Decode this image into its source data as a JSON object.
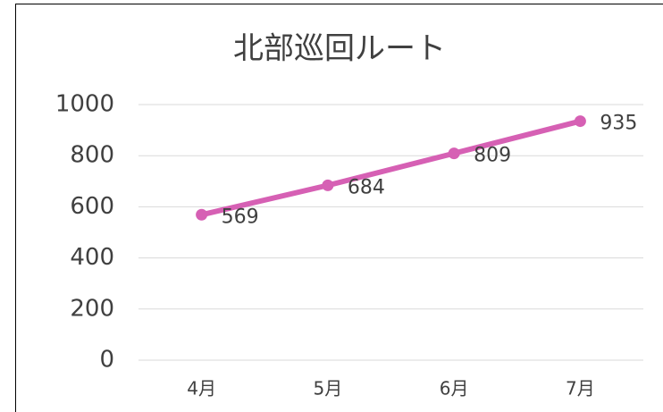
{
  "chart_data": {
    "type": "line",
    "title": "北部巡回ルート",
    "categories": [
      "4月",
      "5月",
      "6月",
      "7月"
    ],
    "series": [
      {
        "name": "北部巡回ルート",
        "color": "#d660b4",
        "values": [
          569,
          684,
          809,
          935
        ]
      }
    ],
    "ylim": [
      0,
      1000
    ],
    "yticks": [
      0,
      200,
      400,
      600,
      800,
      1000
    ],
    "grid": true
  }
}
